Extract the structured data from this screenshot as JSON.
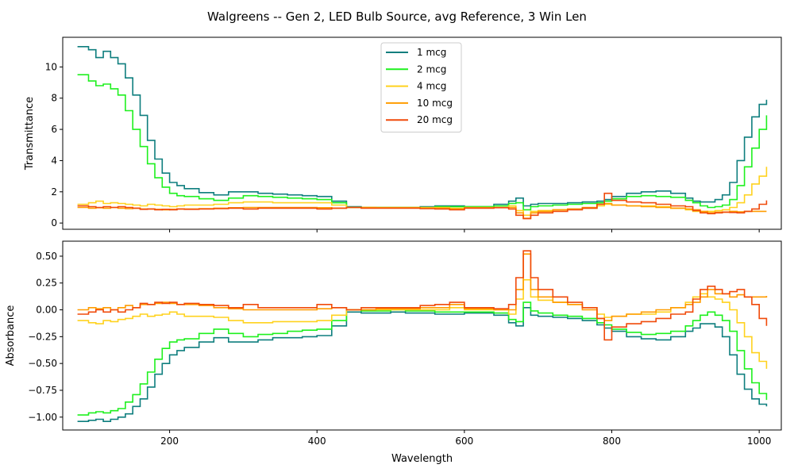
{
  "figure": {
    "title": "Walgreens -- Gen 2, LED Bulb Source, avg Reference, 3 Win Len"
  },
  "chart_data": [
    {
      "type": "line",
      "xlabel": "",
      "ylabel": "Transmittance",
      "xlim": [
        55,
        1030
      ],
      "ylim": [
        -0.4,
        11.9
      ],
      "xticks": [
        200,
        400,
        600,
        800,
        1000
      ],
      "show_xtick_labels": false,
      "yticks": [
        0,
        2,
        4,
        6,
        8,
        10
      ],
      "yticklabels": [
        "0",
        "2",
        "4",
        "6",
        "8",
        "10"
      ],
      "grid": false,
      "legend": "top-center",
      "x": [
        75,
        90,
        100,
        110,
        120,
        130,
        140,
        150,
        160,
        170,
        180,
        190,
        200,
        210,
        220,
        240,
        260,
        280,
        300,
        320,
        340,
        360,
        380,
        400,
        420,
        440,
        460,
        480,
        500,
        520,
        540,
        560,
        580,
        600,
        620,
        640,
        660,
        670,
        680,
        690,
        700,
        720,
        740,
        760,
        780,
        790,
        800,
        820,
        840,
        860,
        880,
        900,
        910,
        920,
        930,
        940,
        950,
        960,
        970,
        980,
        990,
        1000,
        1010
      ],
      "series": [
        {
          "name": "1 mcg",
          "color": "#0e7e7e",
          "values": [
            11.3,
            11.1,
            10.6,
            11.0,
            10.6,
            10.2,
            9.3,
            8.2,
            6.9,
            5.3,
            4.1,
            3.2,
            2.6,
            2.4,
            2.2,
            1.95,
            1.8,
            2.0,
            2.0,
            1.9,
            1.85,
            1.8,
            1.75,
            1.7,
            1.4,
            1.05,
            1.0,
            1.0,
            1.0,
            1.0,
            1.05,
            1.1,
            1.1,
            1.05,
            1.05,
            1.2,
            1.4,
            1.6,
            1.1,
            1.2,
            1.25,
            1.25,
            1.3,
            1.35,
            1.4,
            1.5,
            1.7,
            1.9,
            2.0,
            2.05,
            1.9,
            1.6,
            1.4,
            1.35,
            1.35,
            1.5,
            1.8,
            2.6,
            4.0,
            5.5,
            6.8,
            7.6,
            7.9
          ]
        },
        {
          "name": "2 mcg",
          "color": "#1ef01e",
          "values": [
            9.5,
            9.1,
            8.8,
            8.9,
            8.6,
            8.2,
            7.2,
            6.0,
            4.9,
            3.8,
            2.9,
            2.3,
            1.9,
            1.75,
            1.7,
            1.55,
            1.45,
            1.6,
            1.75,
            1.7,
            1.65,
            1.6,
            1.55,
            1.5,
            1.3,
            1.0,
            1.0,
            1.0,
            1.0,
            1.0,
            1.0,
            1.05,
            1.05,
            1.05,
            1.05,
            1.1,
            1.25,
            1.3,
            0.85,
            1.05,
            1.1,
            1.15,
            1.2,
            1.25,
            1.3,
            1.4,
            1.55,
            1.7,
            1.75,
            1.7,
            1.65,
            1.45,
            1.3,
            1.1,
            1.0,
            1.05,
            1.15,
            1.5,
            2.4,
            3.6,
            4.8,
            6.0,
            6.9
          ]
        },
        {
          "name": "4 mcg",
          "color": "#ffd21e",
          "values": [
            1.2,
            1.3,
            1.4,
            1.25,
            1.3,
            1.25,
            1.2,
            1.15,
            1.1,
            1.2,
            1.15,
            1.1,
            1.05,
            1.1,
            1.15,
            1.15,
            1.2,
            1.3,
            1.35,
            1.35,
            1.3,
            1.3,
            1.3,
            1.3,
            1.15,
            1.0,
            1.0,
            1.0,
            1.0,
            1.0,
            1.0,
            1.0,
            0.95,
            1.0,
            1.0,
            1.0,
            1.1,
            0.8,
            0.5,
            0.75,
            0.8,
            0.85,
            0.9,
            0.95,
            1.1,
            1.2,
            1.15,
            1.1,
            1.1,
            1.05,
            0.95,
            0.85,
            0.75,
            0.7,
            0.75,
            0.8,
            0.85,
            1.0,
            1.3,
            1.8,
            2.5,
            3.0,
            3.6
          ]
        },
        {
          "name": "10 mcg",
          "color": "#ff9c00",
          "values": [
            1.0,
            0.95,
            0.98,
            0.95,
            1.0,
            0.95,
            0.92,
            0.95,
            0.9,
            0.9,
            0.88,
            0.85,
            0.88,
            0.9,
            0.9,
            0.92,
            0.95,
            0.98,
            1.0,
            1.0,
            1.0,
            1.0,
            1.0,
            0.98,
            0.95,
            1.0,
            1.0,
            0.98,
            0.98,
            0.98,
            0.95,
            0.95,
            0.9,
            0.98,
            0.98,
            1.0,
            1.0,
            0.65,
            0.3,
            0.65,
            0.75,
            0.85,
            0.9,
            1.0,
            1.2,
            1.25,
            1.15,
            1.1,
            1.05,
            1.0,
            0.95,
            0.9,
            0.85,
            0.75,
            0.65,
            0.7,
            0.7,
            0.75,
            0.72,
            0.75,
            0.75,
            0.75,
            0.75
          ]
        },
        {
          "name": "20 mcg",
          "color": "#f04a0a",
          "values": [
            1.1,
            1.05,
            1.0,
            1.05,
            1.0,
            1.05,
            1.0,
            0.95,
            0.88,
            0.9,
            0.85,
            0.88,
            0.85,
            0.9,
            0.88,
            0.9,
            0.92,
            0.95,
            0.9,
            0.95,
            0.95,
            0.95,
            0.95,
            0.9,
            0.95,
            1.0,
            0.95,
            0.95,
            0.95,
            0.95,
            0.92,
            0.9,
            0.85,
            0.95,
            0.95,
            0.98,
            0.9,
            0.5,
            0.28,
            0.5,
            0.65,
            0.75,
            0.85,
            0.95,
            1.2,
            1.9,
            1.45,
            1.35,
            1.3,
            1.2,
            1.1,
            1.05,
            0.8,
            0.65,
            0.6,
            0.65,
            0.7,
            0.68,
            0.65,
            0.75,
            0.9,
            1.2,
            1.45
          ]
        }
      ]
    },
    {
      "type": "line",
      "xlabel": "Wavelength",
      "ylabel": "Absorbance",
      "xlim": [
        55,
        1030
      ],
      "ylim": [
        -1.12,
        0.64
      ],
      "xticks": [
        200,
        400,
        600,
        800,
        1000
      ],
      "xticklabels": [
        "200",
        "400",
        "600",
        "800",
        "1000"
      ],
      "show_xtick_labels": true,
      "yticks": [
        -1.0,
        -0.75,
        -0.5,
        -0.25,
        0.0,
        0.25,
        0.5
      ],
      "yticklabels": [
        "−1.00",
        "−0.75",
        "−0.50",
        "−0.25",
        "0.00",
        "0.25",
        "0.50"
      ],
      "grid": false,
      "legend": "none",
      "x": [
        75,
        90,
        100,
        110,
        120,
        130,
        140,
        150,
        160,
        170,
        180,
        190,
        200,
        210,
        220,
        240,
        260,
        280,
        300,
        320,
        340,
        360,
        380,
        400,
        420,
        440,
        460,
        480,
        500,
        520,
        540,
        560,
        580,
        600,
        620,
        640,
        660,
        670,
        680,
        690,
        700,
        720,
        740,
        760,
        780,
        790,
        800,
        820,
        840,
        860,
        880,
        900,
        910,
        920,
        930,
        940,
        950,
        960,
        970,
        980,
        990,
        1000,
        1010
      ],
      "series": [
        {
          "name": "1 mcg",
          "color": "#0e7e7e",
          "values": [
            -1.04,
            -1.03,
            -1.02,
            -1.04,
            -1.02,
            -1.0,
            -0.97,
            -0.9,
            -0.83,
            -0.72,
            -0.6,
            -0.5,
            -0.42,
            -0.38,
            -0.35,
            -0.3,
            -0.26,
            -0.3,
            -0.3,
            -0.28,
            -0.26,
            -0.26,
            -0.25,
            -0.24,
            -0.15,
            -0.02,
            -0.03,
            -0.03,
            -0.02,
            -0.03,
            -0.03,
            -0.04,
            -0.04,
            -0.03,
            -0.03,
            -0.05,
            -0.12,
            -0.15,
            0.02,
            -0.05,
            -0.06,
            -0.07,
            -0.08,
            -0.1,
            -0.14,
            -0.17,
            -0.2,
            -0.25,
            -0.27,
            -0.28,
            -0.25,
            -0.2,
            -0.17,
            -0.13,
            -0.13,
            -0.16,
            -0.25,
            -0.42,
            -0.6,
            -0.74,
            -0.83,
            -0.88,
            -0.9
          ]
        },
        {
          "name": "2 mcg",
          "color": "#1ef01e",
          "values": [
            -0.98,
            -0.96,
            -0.95,
            -0.96,
            -0.94,
            -0.92,
            -0.86,
            -0.79,
            -0.69,
            -0.58,
            -0.46,
            -0.36,
            -0.3,
            -0.28,
            -0.27,
            -0.22,
            -0.18,
            -0.22,
            -0.25,
            -0.23,
            -0.22,
            -0.2,
            -0.19,
            -0.18,
            -0.1,
            0.0,
            -0.01,
            -0.01,
            0.0,
            -0.01,
            -0.01,
            -0.02,
            -0.02,
            -0.02,
            -0.02,
            -0.03,
            -0.09,
            -0.11,
            0.07,
            -0.01,
            -0.03,
            -0.05,
            -0.06,
            -0.08,
            -0.12,
            -0.14,
            -0.18,
            -0.21,
            -0.23,
            -0.22,
            -0.2,
            -0.15,
            -0.1,
            -0.05,
            -0.02,
            -0.05,
            -0.1,
            -0.2,
            -0.38,
            -0.55,
            -0.68,
            -0.78,
            -0.84
          ]
        },
        {
          "name": "4 mcg",
          "color": "#ffd21e",
          "values": [
            -0.1,
            -0.12,
            -0.13,
            -0.1,
            -0.11,
            -0.09,
            -0.08,
            -0.06,
            -0.04,
            -0.06,
            -0.05,
            -0.04,
            -0.02,
            -0.04,
            -0.06,
            -0.06,
            -0.07,
            -0.1,
            -0.12,
            -0.12,
            -0.11,
            -0.11,
            -0.11,
            -0.1,
            -0.05,
            0.0,
            0.0,
            0.0,
            0.0,
            0.0,
            0.0,
            0.0,
            0.02,
            0.0,
            0.0,
            0.0,
            -0.04,
            0.1,
            0.28,
            0.12,
            0.09,
            0.07,
            0.05,
            0.02,
            -0.04,
            -0.07,
            -0.06,
            -0.04,
            -0.04,
            -0.02,
            0.02,
            0.07,
            0.12,
            0.15,
            0.12,
            0.1,
            0.07,
            0.0,
            -0.12,
            -0.25,
            -0.4,
            -0.48,
            -0.55
          ]
        },
        {
          "name": "10 mcg",
          "color": "#ff9c00",
          "values": [
            0.0,
            0.02,
            0.01,
            0.02,
            0.0,
            0.02,
            0.04,
            0.02,
            0.05,
            0.05,
            0.06,
            0.07,
            0.06,
            0.05,
            0.05,
            0.04,
            0.02,
            0.01,
            0.0,
            0.0,
            0.0,
            0.0,
            0.0,
            0.01,
            0.02,
            0.0,
            0.0,
            0.01,
            0.01,
            0.01,
            0.02,
            0.02,
            0.05,
            0.01,
            0.01,
            0.0,
            0.0,
            0.19,
            0.52,
            0.19,
            0.12,
            0.07,
            0.05,
            0.0,
            -0.08,
            -0.1,
            -0.06,
            -0.04,
            -0.02,
            0.0,
            0.02,
            0.05,
            0.07,
            0.12,
            0.19,
            0.15,
            0.15,
            0.12,
            0.14,
            0.12,
            0.12,
            0.12,
            0.13
          ]
        },
        {
          "name": "20 mcg",
          "color": "#f04a0a",
          "values": [
            -0.04,
            -0.02,
            0.0,
            -0.02,
            0.0,
            -0.02,
            0.0,
            0.02,
            0.06,
            0.05,
            0.07,
            0.06,
            0.07,
            0.05,
            0.06,
            0.05,
            0.04,
            0.02,
            0.05,
            0.02,
            0.02,
            0.02,
            0.02,
            0.05,
            0.02,
            0.0,
            0.02,
            0.02,
            0.02,
            0.02,
            0.04,
            0.05,
            0.07,
            0.02,
            0.02,
            0.01,
            0.05,
            0.3,
            0.55,
            0.3,
            0.19,
            0.12,
            0.07,
            0.02,
            -0.08,
            -0.28,
            -0.16,
            -0.13,
            -0.11,
            -0.08,
            -0.04,
            -0.02,
            0.1,
            0.19,
            0.22,
            0.19,
            0.15,
            0.17,
            0.19,
            0.12,
            0.05,
            -0.08,
            -0.15
          ]
        }
      ]
    }
  ]
}
